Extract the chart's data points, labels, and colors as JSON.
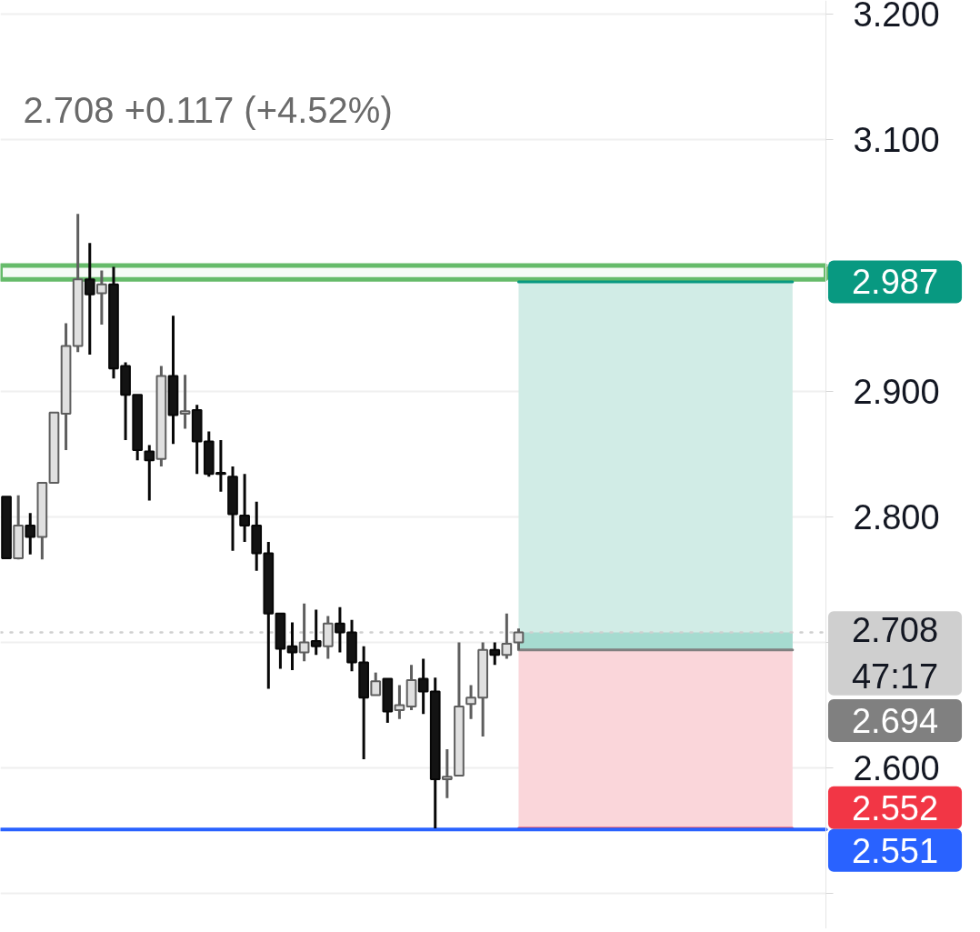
{
  "chart_data": {
    "type": "candlestick",
    "subtitle": "2.708 +0.117 (+4.52%)",
    "categories": [
      null,
      null,
      null,
      null,
      null,
      null,
      null,
      null,
      null,
      null,
      null,
      null,
      null,
      null,
      null,
      null,
      null,
      null,
      null,
      null,
      null,
      null,
      null,
      null,
      null,
      null,
      null,
      null,
      null,
      null,
      null,
      null,
      null,
      null,
      null,
      null,
      null,
      null,
      null,
      null,
      null,
      null,
      null,
      null,
      null,
      null,
      null,
      null,
      null,
      null,
      null,
      null,
      null,
      null,
      null,
      null,
      null,
      null,
      null,
      null,
      null,
      null,
      null,
      null,
      null,
      null,
      null
    ],
    "ohlc": [
      [
        2.816,
        2.816,
        2.767,
        2.767
      ],
      [
        2.767,
        2.817,
        2.766,
        2.793
      ],
      [
        2.793,
        2.803,
        2.77,
        2.784
      ],
      [
        2.784,
        2.827,
        2.766,
        2.827
      ],
      [
        2.827,
        2.883,
        2.827,
        2.883
      ],
      [
        2.882,
        2.954,
        2.853,
        2.936
      ],
      [
        2.936,
        3.041,
        2.931,
        2.989
      ],
      [
        2.989,
        3.018,
        2.929,
        2.977
      ],
      [
        2.978,
        2.996,
        2.953,
        2.985
      ],
      [
        2.985,
        2.999,
        2.91,
        2.918
      ],
      [
        2.92,
        2.923,
        2.861,
        2.897
      ],
      [
        2.897,
        2.897,
        2.845,
        2.853
      ],
      [
        2.852,
        2.857,
        2.813,
        2.845
      ],
      [
        2.846,
        2.92,
        2.84,
        2.912
      ],
      [
        2.912,
        2.96,
        2.858,
        2.881
      ],
      [
        2.882,
        2.913,
        2.87,
        2.884
      ],
      [
        2.885,
        2.889,
        2.834,
        2.86
      ],
      [
        2.86,
        2.868,
        2.832,
        2.834
      ],
      [
        2.835,
        2.861,
        2.82,
        2.834
      ],
      [
        2.832,
        2.84,
        2.773,
        2.802
      ],
      [
        2.801,
        2.834,
        2.78,
        2.793
      ],
      [
        2.793,
        2.812,
        2.757,
        2.771
      ],
      [
        2.771,
        2.78,
        2.663,
        2.723
      ],
      [
        2.723,
        2.723,
        2.679,
        2.695
      ],
      [
        2.697,
        2.716,
        2.678,
        2.692
      ],
      [
        2.692,
        2.731,
        2.685,
        2.7
      ],
      [
        2.701,
        2.726,
        2.69,
        2.697
      ],
      [
        2.697,
        2.721,
        2.687,
        2.715
      ],
      [
        2.715,
        2.728,
        2.692,
        2.708
      ],
      [
        2.708,
        2.718,
        2.677,
        2.684
      ],
      [
        2.684,
        2.697,
        2.607,
        2.656
      ],
      [
        2.658,
        2.676,
        2.658,
        2.669
      ],
      [
        2.671,
        2.671,
        2.636,
        2.645
      ],
      [
        2.646,
        2.666,
        2.639,
        2.65
      ],
      [
        2.649,
        2.682,
        2.646,
        2.67
      ],
      [
        2.671,
        2.687,
        2.643,
        2.661
      ],
      [
        2.661,
        2.672,
        2.552,
        2.591
      ],
      [
        2.591,
        2.615,
        2.576,
        2.593
      ],
      [
        2.594,
        2.7,
        2.594,
        2.649
      ],
      [
        2.651,
        2.666,
        2.639,
        2.656
      ],
      [
        2.656,
        2.7,
        2.625,
        2.694
      ],
      [
        2.694,
        2.7,
        2.682,
        2.69
      ],
      [
        2.69,
        2.723,
        2.687,
        2.699
      ],
      [
        2.7,
        2.711,
        2.694,
        2.708
      ],
      null,
      null,
      null,
      null,
      null,
      null,
      null,
      null,
      null,
      null,
      null,
      null,
      null,
      null,
      null,
      null,
      null,
      null,
      null,
      null,
      null,
      null,
      null
    ],
    "colors": [
      "#131313",
      "#e0e0e0",
      "#131313",
      "#e0e0e0",
      "#e0e0e0",
      "#e0e0e0",
      "#e0e0e0",
      "#131313",
      "#e0e0e0",
      "#131313",
      "#131313",
      "#131313",
      "#131313",
      "#e0e0e0",
      "#131313",
      "#e0e0e0",
      "#131313",
      "#131313",
      "#131313",
      "#131313",
      "#131313",
      "#131313",
      "#131313",
      "#131313",
      "#131313",
      "#e0e0e0",
      "#131313",
      "#e0e0e0",
      "#131313",
      "#131313",
      "#131313",
      "#e0e0e0",
      "#131313",
      "#e0e0e0",
      "#e0e0e0",
      "#131313",
      "#131313",
      "#e0e0e0",
      "#e0e0e0",
      "#e0e0e0",
      "#e0e0e0",
      "#131313",
      "#e0e0e0",
      "#e0e0e0",
      null,
      null,
      null,
      null,
      null,
      null,
      null,
      null,
      null,
      null,
      null,
      null,
      null,
      null,
      null,
      null,
      null,
      null,
      null,
      null,
      null,
      null,
      null
    ],
    "ylim": [
      2.472,
      3.211
    ],
    "yticks": [
      {
        "value": 2.5,
        "label": null
      },
      {
        "value": 2.6,
        "label": "2.600"
      },
      {
        "value": 2.7,
        "label": null
      },
      {
        "value": 2.8,
        "label": "2.800"
      },
      {
        "value": 2.9,
        "label": "2.900"
      },
      {
        "value": 3.0,
        "label": null
      },
      {
        "value": 3.1,
        "label": "3.100"
      },
      {
        "value": 3.2,
        "label": "3.200"
      }
    ],
    "tick_labels": "y",
    "grid": "y",
    "bands": [
      {
        "axis": "y",
        "from": 2.989,
        "to": 3.0,
        "color": "#66bb6a"
      },
      {
        "axis": "y",
        "from": 2.694,
        "to": 2.987,
        "color": "#d1ece6"
      },
      {
        "axis": "y",
        "from": 2.552,
        "to": 2.694,
        "color": "#fad6da"
      },
      {
        "axis": "y",
        "from": 2.694,
        "to": 2.708,
        "color": "#a6dbd0"
      }
    ],
    "ref_lines": [
      {
        "axis": "y",
        "value": 2.987,
        "label": "2.987",
        "color": "#089981"
      },
      {
        "axis": "y",
        "value": 2.708,
        "label": "2.708\n47:17",
        "color": "#cfcfcf",
        "line_style": "dotted"
      },
      {
        "axis": "y",
        "value": 2.694,
        "label": "2.694",
        "color": "#808080"
      },
      {
        "axis": "y",
        "value": 2.552,
        "label": "2.552",
        "color": "#f23645"
      },
      {
        "axis": "y",
        "value": 2.551,
        "label": "2.551",
        "color": "#2962ff"
      }
    ]
  }
}
